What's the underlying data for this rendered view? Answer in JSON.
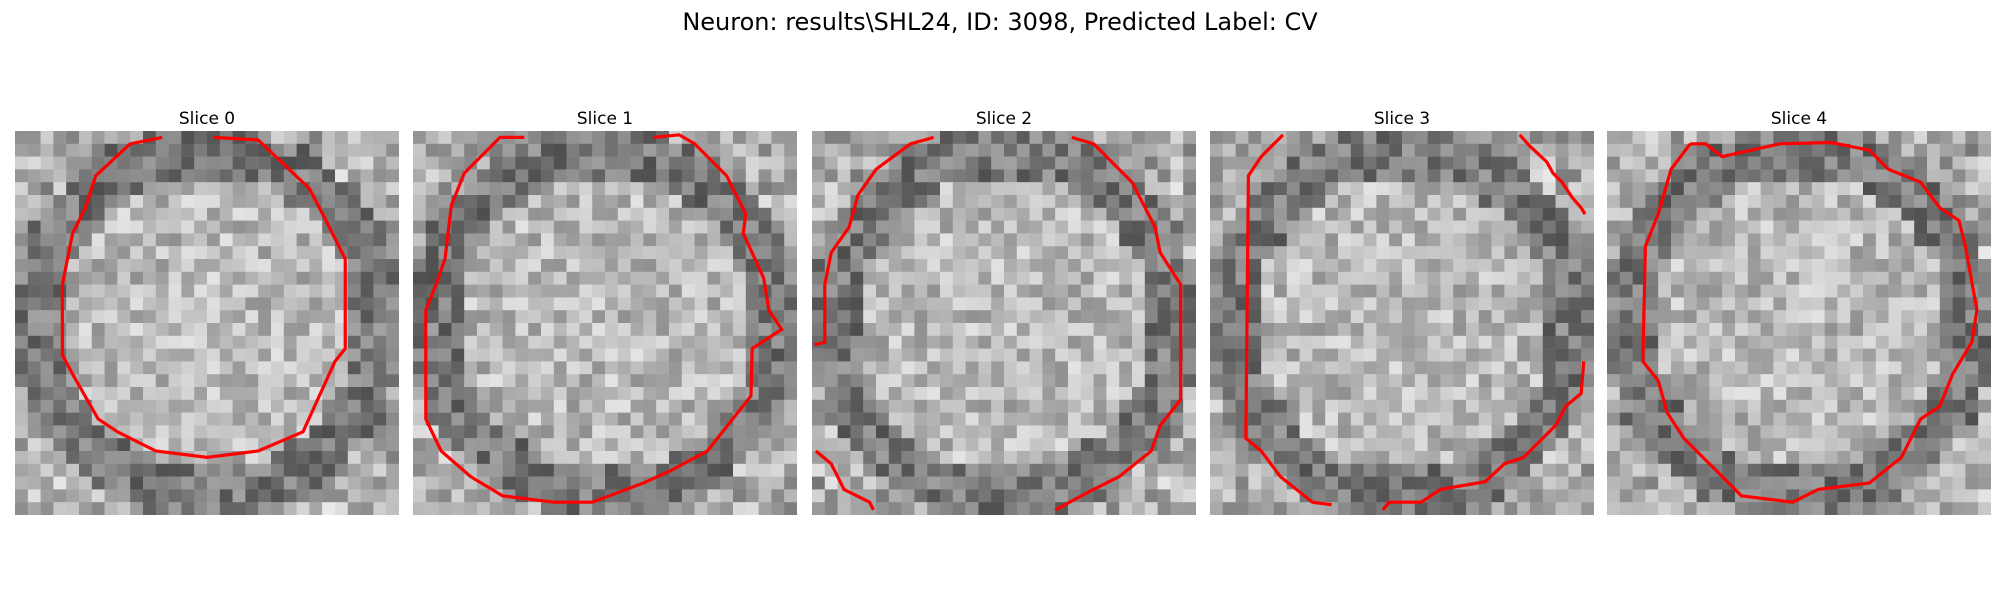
{
  "figure": {
    "title": "Neuron: results\\SHL24, ID: 3098, Predicted Label: CV"
  },
  "panels": [
    {
      "label": "Slice 0"
    },
    {
      "label": "Slice 1"
    },
    {
      "label": "Slice 2"
    },
    {
      "label": "Slice 3"
    },
    {
      "label": "Slice 4"
    }
  ],
  "contour_color": "#ff0000"
}
